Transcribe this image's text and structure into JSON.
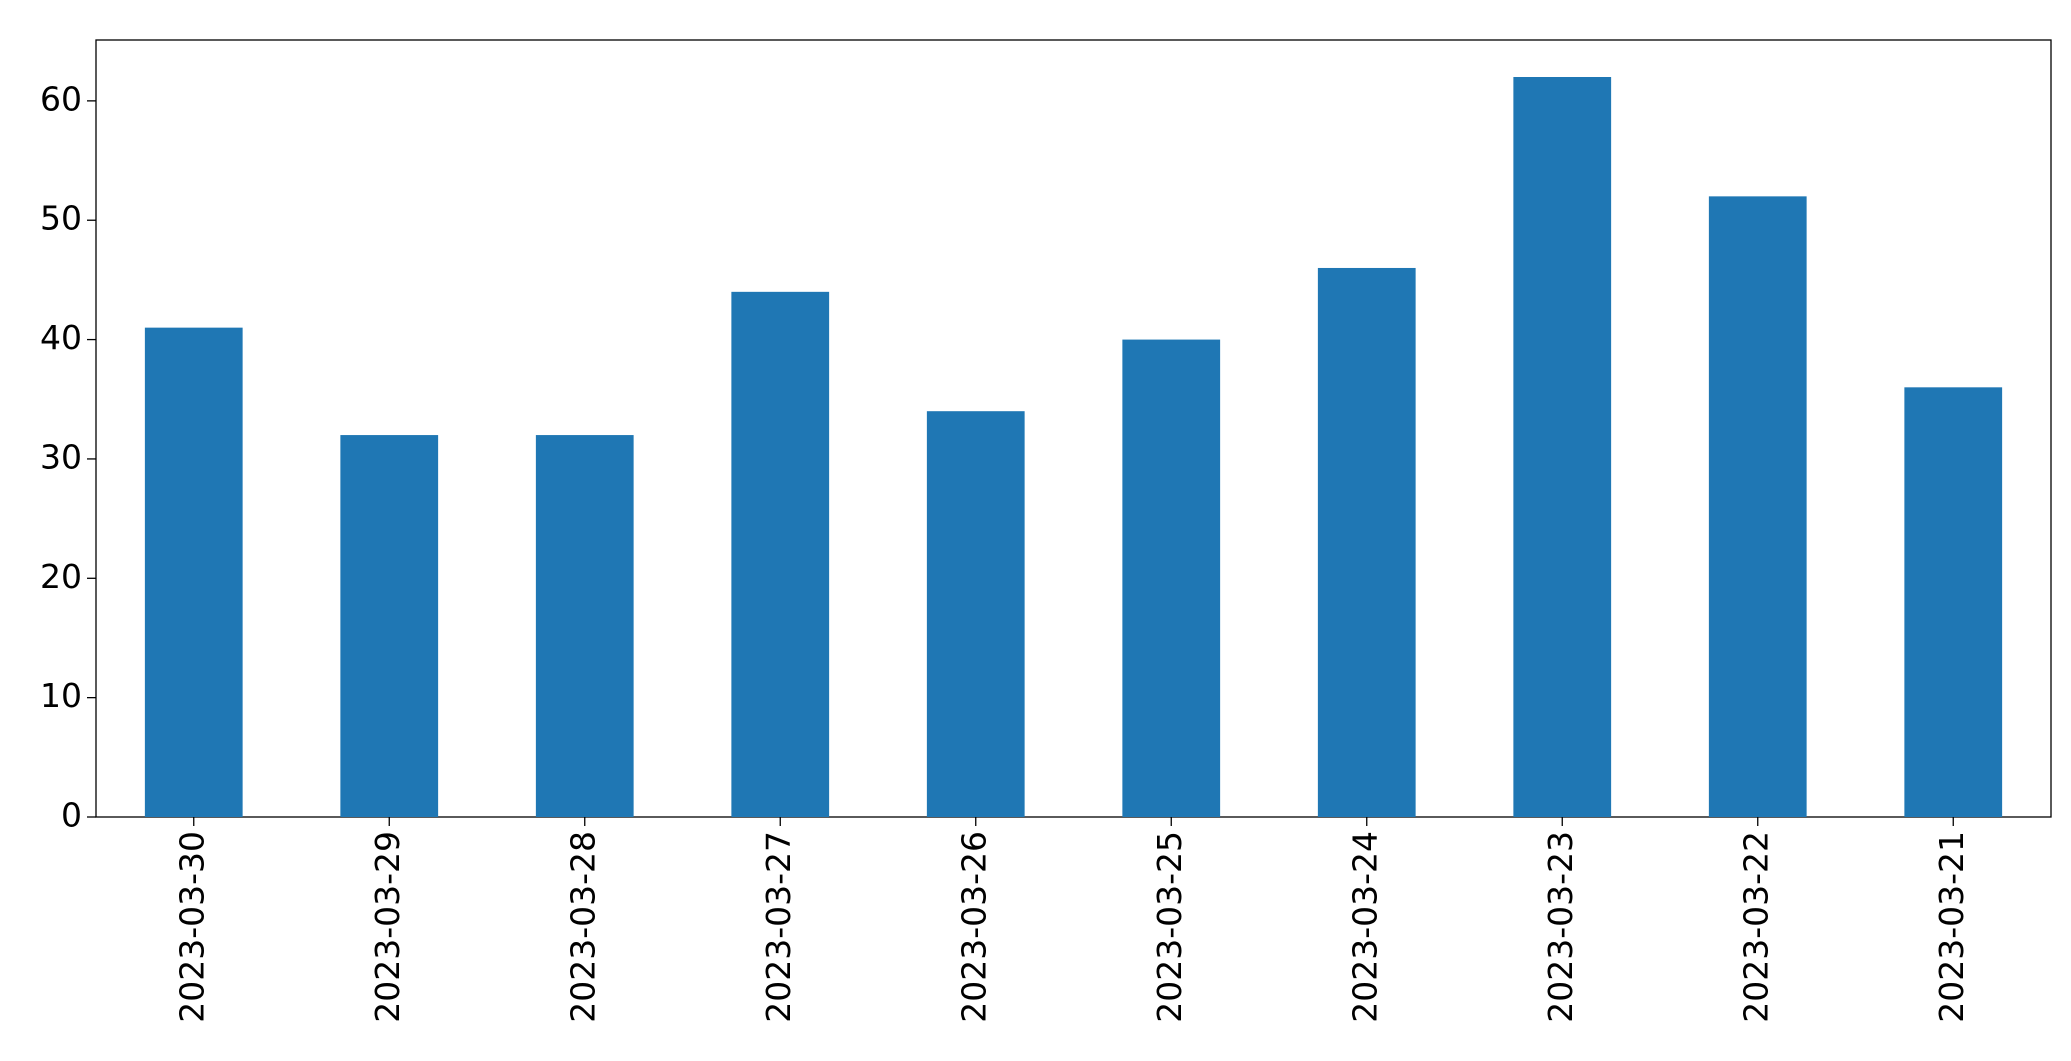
{
  "chart_data": {
    "type": "bar",
    "categories": [
      "2023-03-30",
      "2023-03-29",
      "2023-03-28",
      "2023-03-27",
      "2023-03-26",
      "2023-03-25",
      "2023-03-24",
      "2023-03-23",
      "2023-03-22",
      "2023-03-21"
    ],
    "values": [
      41,
      32,
      32,
      44,
      34,
      40,
      46,
      62,
      52,
      36
    ],
    "color": "#1f77b4",
    "ylim": [
      0,
      65.1
    ],
    "yticks": [
      0,
      10,
      20,
      30,
      40,
      50,
      60
    ],
    "grid": false
  }
}
